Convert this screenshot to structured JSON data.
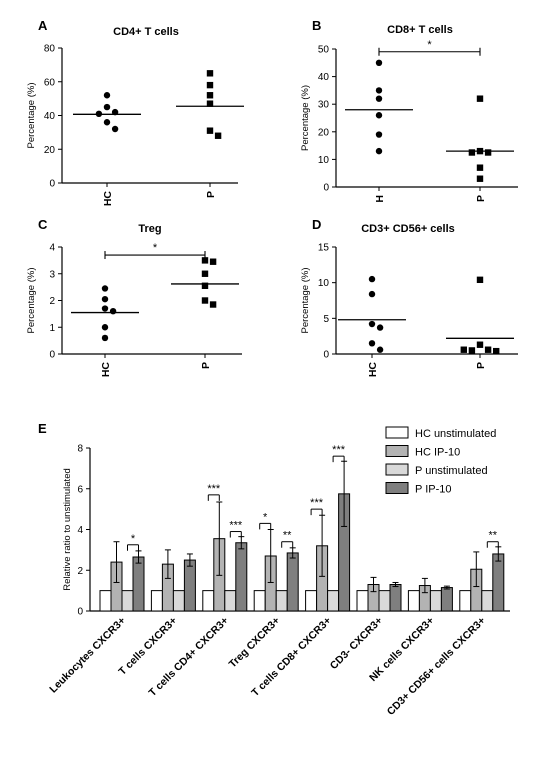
{
  "chart_data": [
    {
      "panel": "A",
      "type": "scatter",
      "title": "CD4+ T cells",
      "ylabel": "Percentage (%)",
      "ylim": [
        0,
        80
      ],
      "yticks": [
        0,
        20,
        40,
        60,
        80
      ],
      "categories": [
        "HC",
        "P"
      ],
      "groups": [
        {
          "category": "HC",
          "marker": "circle",
          "values": [
            52,
            45,
            42,
            41,
            36,
            32
          ],
          "mean": 40.7
        },
        {
          "category": "P",
          "marker": "square",
          "values": [
            65,
            58,
            52,
            47,
            31,
            28
          ],
          "mean": 45.5
        }
      ]
    },
    {
      "panel": "B",
      "type": "scatter",
      "title": "CD8+ T cells",
      "ylabel": "Percentage (%)",
      "ylim": [
        0,
        50
      ],
      "yticks": [
        0,
        10,
        20,
        30,
        40,
        50
      ],
      "categories": [
        "H",
        "P"
      ],
      "groups": [
        {
          "category": "H",
          "marker": "circle",
          "values": [
            45,
            35,
            32,
            26,
            19,
            13
          ],
          "mean": 28
        },
        {
          "category": "P",
          "marker": "square",
          "values": [
            32,
            13,
            12.5,
            12.5,
            7,
            3
          ],
          "mean": 13
        }
      ],
      "significance": [
        {
          "from": 0,
          "to": 1,
          "y": 49,
          "label": "*"
        }
      ]
    },
    {
      "panel": "C",
      "type": "scatter",
      "title": "Treg",
      "ylabel": "Percentage (%)",
      "ylim": [
        0,
        4
      ],
      "yticks": [
        0,
        1,
        2,
        3,
        4
      ],
      "categories": [
        "HC",
        "P"
      ],
      "groups": [
        {
          "category": "HC",
          "marker": "circle",
          "values": [
            2.45,
            2.05,
            1.7,
            1.6,
            1.0,
            0.6
          ],
          "mean": 1.55
        },
        {
          "category": "P",
          "marker": "square",
          "values": [
            3.5,
            3.45,
            3.0,
            2.55,
            2.0,
            1.85
          ],
          "mean": 2.62
        }
      ],
      "significance": [
        {
          "from": 0,
          "to": 1,
          "y": 3.7,
          "label": "*"
        }
      ]
    },
    {
      "panel": "D",
      "type": "scatter",
      "title": "CD3+ CD56+ cells",
      "ylabel": "Percentage (%)",
      "ylim": [
        0,
        15
      ],
      "yticks": [
        0,
        5,
        10,
        15
      ],
      "categories": [
        "HC",
        "P"
      ],
      "groups": [
        {
          "category": "HC",
          "marker": "circle",
          "values": [
            10.5,
            8.4,
            4.2,
            3.7,
            1.5,
            0.6
          ],
          "mean": 4.8
        },
        {
          "category": "P",
          "marker": "square",
          "values": [
            10.4,
            1.3,
            0.6,
            0.5,
            0.4,
            0.6
          ],
          "mean": 2.2
        }
      ]
    },
    {
      "panel": "E",
      "type": "bar",
      "ylabel": "Relative ratio to unstimulated",
      "ylim": [
        0,
        8
      ],
      "yticks": [
        0,
        2,
        4,
        6,
        8
      ],
      "categories": [
        "Leukocytes CXCR3+",
        "T cells CXCR3+",
        "T cells CD4+ CXCR3+",
        "Treg CXCR3+",
        "T cells CD8+ CXCR3+",
        "CD3- CXCR3+",
        "NK cells CXCR3+",
        "CD3+ CD56+ cells CXCR3+"
      ],
      "series": [
        {
          "name": "HC unstimulated",
          "color": "#ffffff",
          "values": [
            1,
            1,
            1,
            1,
            1,
            1,
            1,
            1
          ],
          "errors": [
            0,
            0,
            0,
            0,
            0,
            0,
            0,
            0
          ]
        },
        {
          "name": "HC IP-10",
          "color": "#b3b3b3",
          "values": [
            2.4,
            2.3,
            3.55,
            2.7,
            3.2,
            1.3,
            1.25,
            2.05
          ],
          "errors": [
            1.0,
            0.7,
            1.8,
            1.3,
            1.5,
            0.35,
            0.35,
            0.85
          ]
        },
        {
          "name": "P unstimulated",
          "color": "#d9d9d9",
          "values": [
            1,
            1,
            1,
            1,
            1,
            1,
            1,
            1
          ],
          "errors": [
            0,
            0,
            0,
            0,
            0,
            0,
            0,
            0
          ]
        },
        {
          "name": "P IP-10",
          "color": "#7f7f7f",
          "values": [
            2.65,
            2.5,
            3.35,
            2.85,
            5.75,
            1.3,
            1.15,
            2.8
          ],
          "errors": [
            0.3,
            0.3,
            0.3,
            0.25,
            1.6,
            0.1,
            0.07,
            0.35
          ]
        }
      ],
      "significance": [
        {
          "category": 0,
          "from_series": 2,
          "to_series": 3,
          "y": 3.25,
          "label": "*"
        },
        {
          "category": 2,
          "from_series": 0,
          "to_series": 1,
          "y": 5.7,
          "label": "***"
        },
        {
          "category": 2,
          "from_series": 2,
          "to_series": 3,
          "y": 3.9,
          "label": "***"
        },
        {
          "category": 3,
          "from_series": 0,
          "to_series": 1,
          "y": 4.3,
          "label": "*"
        },
        {
          "category": 3,
          "from_series": 2,
          "to_series": 3,
          "y": 3.4,
          "label": "**"
        },
        {
          "category": 4,
          "from_series": 0,
          "to_series": 1,
          "y": 5.0,
          "label": "***"
        },
        {
          "category": 4,
          "from_series": 2,
          "to_series": 3,
          "y": 7.6,
          "label": "***"
        },
        {
          "category": 7,
          "from_series": 2,
          "to_series": 3,
          "y": 3.4,
          "label": "**"
        }
      ],
      "legend_position": "top-right"
    }
  ]
}
